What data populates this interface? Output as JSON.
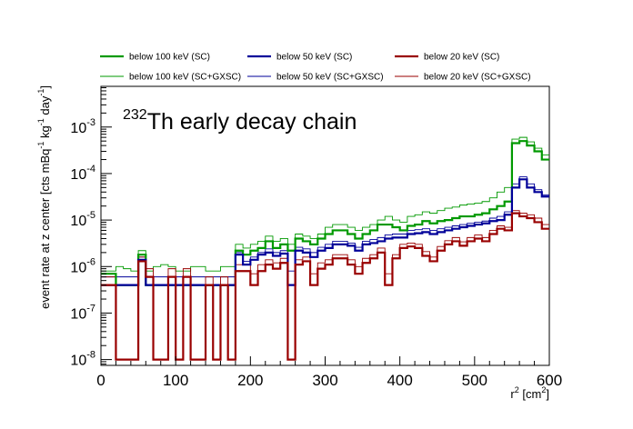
{
  "chart_data": {
    "type": "step",
    "title": "Th early decay chain",
    "title_superscript": "232",
    "xlabel": "r",
    "xlabel_sup": "2",
    "xlabel_unit": "[cm",
    "xlabel_unit_sup": "2",
    "xlabel_unit_close": "]",
    "ylabel": "event rate at z center [cts mBq",
    "ylabel_sup1": "-1",
    "ylabel_mid1": " kg",
    "ylabel_sup2": "-1",
    "ylabel_mid2": " day",
    "ylabel_sup3": "-1",
    "ylabel_close": "]",
    "xlim": [
      0,
      600
    ],
    "ylim": [
      7.5e-09,
      0.0075
    ],
    "yscale": "log",
    "grid": false,
    "legend_position": "top",
    "x_ticks": [
      0,
      100,
      200,
      300,
      400,
      500,
      600
    ],
    "y_ticks": [
      {
        "value": 1e-08,
        "base": "10",
        "exp": "-8"
      },
      {
        "value": 1e-07,
        "base": "10",
        "exp": "-7"
      },
      {
        "value": 1e-06,
        "base": "10",
        "exp": "-6"
      },
      {
        "value": 1e-05,
        "base": "10",
        "exp": "-5"
      },
      {
        "value": 0.0001,
        "base": "10",
        "exp": "-4"
      },
      {
        "value": 0.001,
        "base": "10",
        "exp": "-3"
      }
    ],
    "bin_width": 10,
    "series": [
      {
        "name": "below 100 keV (SC)",
        "color": "#009900",
        "width": 2.2,
        "values": [
          7e-07,
          7e-07,
          4e-07,
          4e-07,
          4e-07,
          1.8e-06,
          4e-07,
          4e-07,
          4e-07,
          4e-07,
          4e-07,
          4e-07,
          4e-07,
          4e-07,
          4e-07,
          4e-07,
          4e-07,
          4e-07,
          2.2e-06,
          1.8e-06,
          2.2e-06,
          2.5e-06,
          3.5e-06,
          2.5e-06,
          3e-06,
          2.2e-06,
          4e-06,
          3.5e-06,
          3e-06,
          4e-06,
          5e-06,
          6e-06,
          6e-06,
          5e-06,
          4e-06,
          5e-06,
          6e-06,
          8e-06,
          8e-06,
          7e-06,
          6e-06,
          7.5e-06,
          8e-06,
          9.5e-06,
          8.5e-06,
          9.5e-06,
          1e-05,
          1.1e-05,
          1.2e-05,
          1.2e-05,
          1.3e-05,
          1.4e-05,
          1.7e-05,
          2e-05,
          2.5e-05,
          0.00045,
          0.0005,
          0.0004,
          0.0003,
          0.0002
        ]
      },
      {
        "name": "below 50 keV (SC)",
        "color": "#000099",
        "width": 2.2,
        "values": [
          4e-07,
          4e-07,
          4e-07,
          4e-07,
          4e-07,
          1.4e-06,
          4e-07,
          4e-07,
          4e-07,
          4e-07,
          4e-07,
          4e-07,
          4e-07,
          4e-07,
          4e-07,
          4e-07,
          4e-07,
          4e-07,
          1.8e-06,
          1.1e-06,
          1.4e-06,
          1.8e-06,
          2e-06,
          1.7e-06,
          1.9e-06,
          4e-07,
          2.2e-06,
          2e-06,
          1.6e-06,
          2.2e-06,
          2.5e-06,
          3e-06,
          3e-06,
          2.8e-06,
          2.2e-06,
          3e-06,
          3.2e-06,
          3.5e-06,
          4e-06,
          4.2e-06,
          4.2e-06,
          5e-06,
          5.2e-06,
          5.5e-06,
          5e-06,
          5.5e-06,
          6e-06,
          6.5e-06,
          7e-06,
          7.5e-06,
          8e-06,
          8.5e-06,
          9.5e-06,
          1e-05,
          1.3e-05,
          5e-05,
          7.5e-05,
          5e-05,
          4e-05,
          3.2e-05
        ]
      },
      {
        "name": "below 20 keV (SC)",
        "color": "#990000",
        "width": 2.2,
        "values": [
          4e-07,
          4e-07,
          1e-08,
          1e-08,
          1e-08,
          1.3e-06,
          6e-07,
          1e-08,
          1e-08,
          6e-07,
          1e-08,
          6e-07,
          1e-08,
          1e-08,
          4e-07,
          1e-08,
          4e-07,
          1e-08,
          8e-07,
          8e-07,
          4e-07,
          8e-07,
          1.1e-06,
          9e-07,
          1.2e-06,
          1e-08,
          1.1e-06,
          1.3e-06,
          4e-07,
          9e-07,
          1.1e-06,
          1.5e-06,
          1.5e-06,
          1.1e-06,
          7e-07,
          1.2e-06,
          1.5e-06,
          2e-06,
          4e-07,
          1.5e-06,
          2.5e-06,
          2.7e-06,
          2.5e-06,
          1.7e-06,
          1.3e-06,
          2.2e-06,
          3e-06,
          3.5e-06,
          2.8e-06,
          3.5e-06,
          4e-06,
          3.5e-06,
          5e-06,
          6.5e-06,
          6e-06,
          1.4e-05,
          1.2e-05,
          1.1e-05,
          9e-06,
          6.5e-06
        ]
      },
      {
        "name": "below 100 keV (SC+GXSC)",
        "color": "#009900",
        "width": 0.9,
        "values": [
          8e-07,
          8e-07,
          1e-06,
          9e-07,
          8e-07,
          2.2e-06,
          8e-07,
          1e-06,
          1.1e-06,
          1e-06,
          8e-07,
          8e-07,
          1e-06,
          1e-06,
          8e-07,
          8e-07,
          1e-06,
          1e-06,
          3e-06,
          2.5e-06,
          3e-06,
          3.5e-06,
          4.5e-06,
          3.5e-06,
          4e-06,
          3e-06,
          5e-06,
          4.5e-06,
          4e-06,
          5e-06,
          7e-06,
          8e-06,
          8e-06,
          7e-06,
          6e-06,
          7e-06,
          8e-06,
          1e-05,
          1.2e-05,
          1e-05,
          9e-06,
          1.2e-05,
          1.3e-05,
          1.5e-05,
          1.4e-05,
          1.6e-05,
          1.8e-05,
          1.9e-05,
          2.1e-05,
          2.2e-05,
          2.3e-05,
          2.5e-05,
          3e-05,
          4e-05,
          5e-05,
          0.00055,
          0.0006,
          0.00048,
          0.00035,
          0.00025
        ]
      },
      {
        "name": "below 50 keV (SC+GXSC)",
        "color": "#000099",
        "width": 0.9,
        "values": [
          6e-07,
          6e-07,
          6e-07,
          6e-07,
          6e-07,
          1.6e-06,
          6e-07,
          6e-07,
          6e-07,
          6e-07,
          6e-07,
          6e-07,
          6e-07,
          6e-07,
          6e-07,
          6e-07,
          6e-07,
          6e-07,
          2e-06,
          1.3e-06,
          1.6e-06,
          2e-06,
          2.4e-06,
          2e-06,
          2.2e-06,
          8e-07,
          2.6e-06,
          2.4e-06,
          2e-06,
          2.6e-06,
          3e-06,
          3.5e-06,
          3.5e-06,
          3.2e-06,
          2.6e-06,
          3.5e-06,
          3.8e-06,
          4.2e-06,
          4.8e-06,
          5e-06,
          5e-06,
          6e-06,
          6.2e-06,
          6.5e-06,
          6e-06,
          6.5e-06,
          7e-06,
          7.5e-06,
          8e-06,
          8.5e-06,
          9e-06,
          9.5e-06,
          1.1e-05,
          1.2e-05,
          1.5e-05,
          6e-05,
          8.5e-05,
          6e-05,
          4.5e-05,
          3.5e-05
        ]
      },
      {
        "name": "below 20 keV (SC+GXSC)",
        "color": "#990000",
        "width": 0.9,
        "values": [
          6e-07,
          6e-07,
          4e-07,
          4e-07,
          4e-07,
          1.6e-06,
          9e-07,
          4e-07,
          4e-07,
          9e-07,
          4e-07,
          9e-07,
          4e-07,
          4e-07,
          6e-07,
          4e-07,
          6e-07,
          4e-07,
          1.1e-06,
          1.1e-06,
          7e-07,
          1.1e-06,
          1.4e-06,
          1.2e-06,
          1.5e-06,
          4e-07,
          1.4e-06,
          1.6e-06,
          7e-07,
          1.2e-06,
          1.4e-06,
          1.8e-06,
          1.8e-06,
          1.4e-06,
          1e-06,
          1.5e-06,
          1.8e-06,
          2.5e-06,
          7e-07,
          1.8e-06,
          3e-06,
          3.2e-06,
          3e-06,
          2.1e-06,
          1.6e-06,
          2.7e-06,
          3.6e-06,
          4.2e-06,
          3.4e-06,
          4.2e-06,
          4.8e-06,
          4.2e-06,
          6e-06,
          7.5e-06,
          7e-06,
          1.6e-05,
          1.4e-05,
          1.3e-05,
          1.1e-05,
          8e-06
        ]
      }
    ]
  }
}
